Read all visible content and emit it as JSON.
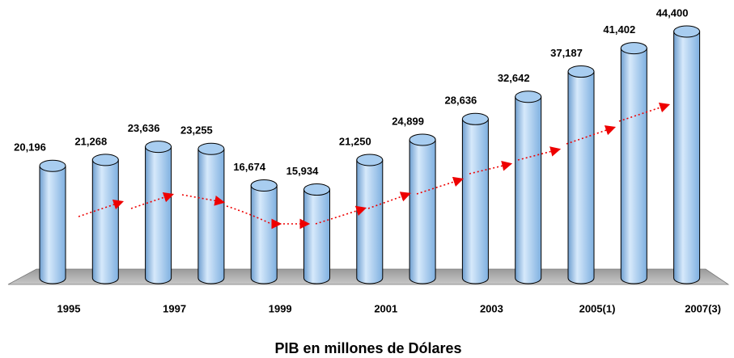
{
  "chart_data": {
    "type": "bar",
    "title": "PIB en millones de Dólares",
    "categories": [
      "1995",
      null,
      "1997",
      null,
      "1999",
      null,
      "2001",
      null,
      "2003",
      null,
      "2005(1)",
      null,
      "2007(3)"
    ],
    "values": [
      20196,
      21268,
      23636,
      23255,
      16674,
      15934,
      21250,
      24899,
      28636,
      32642,
      37187,
      41402,
      44400
    ],
    "value_labels": [
      "20,196",
      "21,268",
      "23,636",
      "23,255",
      "16,674",
      "15,934",
      "21,250",
      "24,899",
      "28,636",
      "32,642",
      "37,187",
      "41,402",
      "44,400"
    ],
    "color": "#a8cdf0"
  }
}
